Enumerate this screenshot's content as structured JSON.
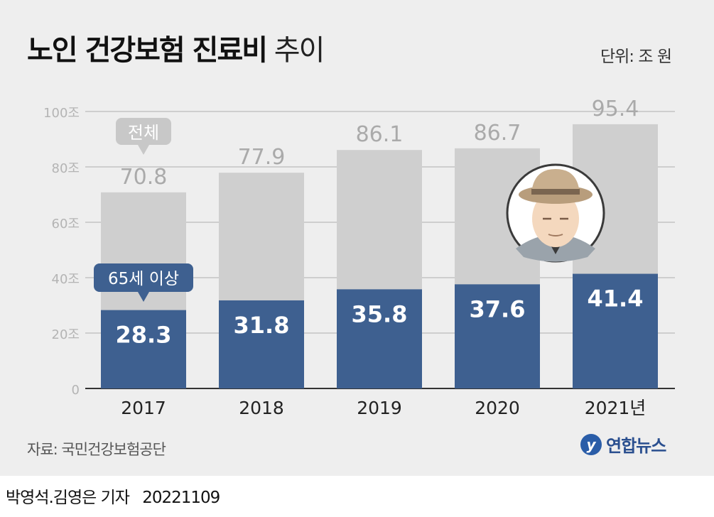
{
  "title": {
    "bold": "노인 건강보험 진료비",
    "light": "추이"
  },
  "unit": "단위: 조 원",
  "source": "자료: 국민건강보험공단",
  "logo": "연합뉴스",
  "byline": {
    "author": "박영석.김영은 기자",
    "date": "20221109"
  },
  "colors": {
    "total": "#cfcfcf",
    "senior": "#3e6090",
    "background": "#eeeeee"
  },
  "chart_data": {
    "type": "bar",
    "title": "노인 건강보험 진료비 추이",
    "unit": "단위: 조 원",
    "categories": [
      "2017",
      "2018",
      "2019",
      "2020",
      "2021년"
    ],
    "series": [
      {
        "name": "전체",
        "values": [
          70.8,
          77.9,
          86.1,
          86.7,
          95.4
        ]
      },
      {
        "name": "65세 이상",
        "values": [
          28.3,
          31.8,
          35.8,
          37.6,
          41.4
        ]
      }
    ],
    "value_labels": {
      "total": [
        "70.8",
        "77.9",
        "86.1",
        "86.7",
        "95.4"
      ],
      "senior": [
        "28.3",
        "31.8",
        "35.8",
        "37.6",
        "41.4"
      ]
    },
    "yticks": [
      0,
      20,
      40,
      60,
      80,
      100
    ],
    "ytick_labels": [
      "0",
      "20조",
      "40조",
      "60조",
      "80조",
      "100조"
    ],
    "ylim": [
      0,
      100
    ],
    "callouts": {
      "total": "전체",
      "senior": "65세 이상"
    },
    "grid": true,
    "layout": "overlapping"
  }
}
